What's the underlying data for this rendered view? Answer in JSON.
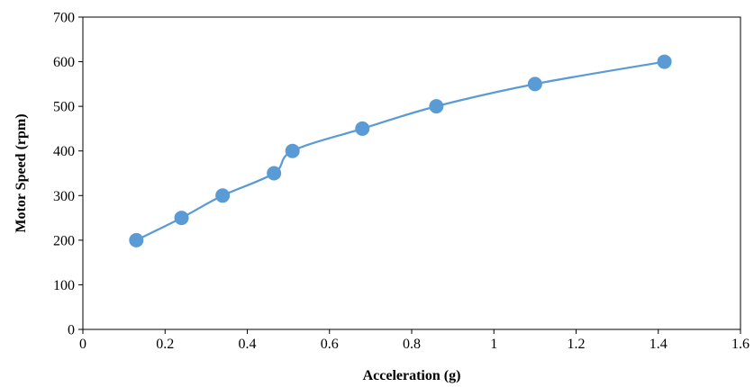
{
  "chart_data": {
    "type": "line",
    "title": "",
    "xlabel": "Acceleration (g)",
    "ylabel": "Motor Speed (rpm)",
    "xlim": [
      0,
      1.6
    ],
    "ylim": [
      0,
      700
    ],
    "x_ticks": [
      0,
      0.2,
      0.4,
      0.6,
      0.8,
      1,
      1.2,
      1.4,
      1.6
    ],
    "x_tick_labels": [
      "0",
      "0.2",
      "0.4",
      "0.6",
      "0.8",
      "1",
      "1.2",
      "1.4",
      "1.6"
    ],
    "y_ticks": [
      0,
      100,
      200,
      300,
      400,
      500,
      600,
      700
    ],
    "y_tick_labels": [
      "0",
      "100",
      "200",
      "300",
      "400",
      "500",
      "600",
      "700"
    ],
    "grid": false,
    "legend": "none",
    "smooth": true,
    "series": [
      {
        "color": "#5B9BD5",
        "x": [
          0.13,
          0.24,
          0.34,
          0.465,
          0.51,
          0.68,
          0.86,
          1.1,
          1.415
        ],
        "y": [
          200,
          250,
          300,
          350,
          400,
          450,
          500,
          550,
          600
        ]
      }
    ]
  }
}
